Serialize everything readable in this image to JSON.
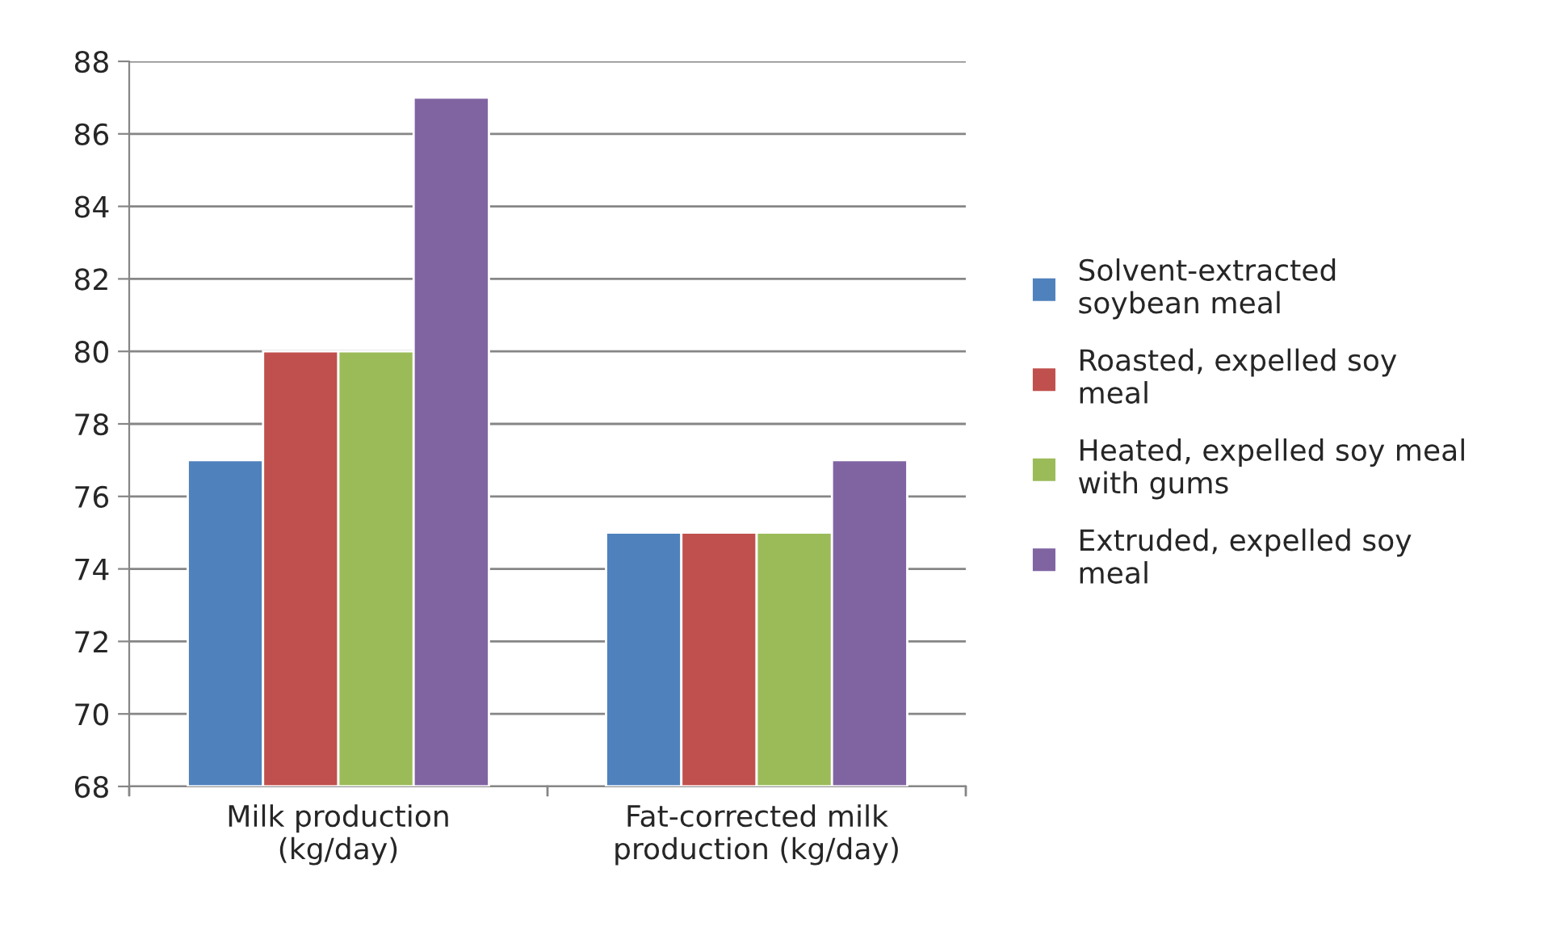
{
  "chart_data": {
    "type": "bar",
    "categories": [
      "Milk production\n(kg/day)",
      "Fat-corrected milk\nproduction (kg/day)"
    ],
    "series": [
      {
        "name": "Solvent-extracted\nsoybean meal",
        "color": "#4f81bd",
        "values": [
          77,
          75
        ]
      },
      {
        "name": "Roasted, expelled soy\nmeal",
        "color": "#c0504d",
        "values": [
          80,
          75
        ]
      },
      {
        "name": "Heated, expelled soy meal\nwith gums",
        "color": "#9bbb59",
        "values": [
          80,
          75
        ]
      },
      {
        "name": "Extruded, expelled soy\nmeal",
        "color": "#8064a2",
        "values": [
          87,
          77
        ]
      }
    ],
    "ylim": [
      68,
      88
    ],
    "yticks": [
      68,
      70,
      72,
      74,
      76,
      78,
      80,
      82,
      84,
      86,
      88
    ],
    "grid": "y",
    "legend": "right"
  }
}
